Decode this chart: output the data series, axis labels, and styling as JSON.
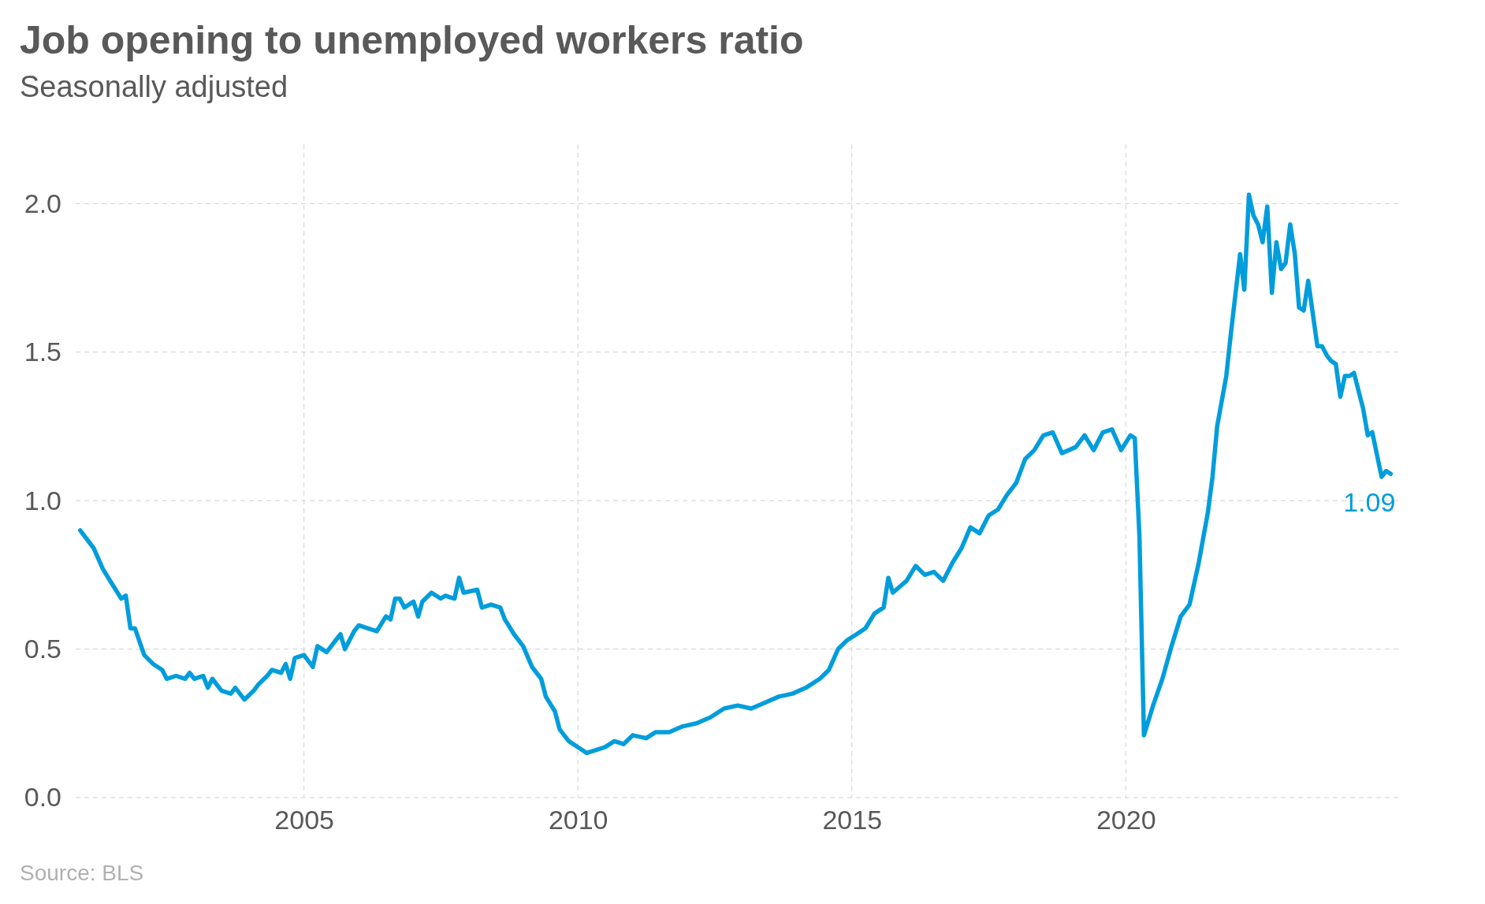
{
  "chart_data": {
    "type": "line",
    "title": "Job opening to unemployed workers ratio",
    "subtitle": "Seasonally adjusted",
    "annotations": [
      {
        "text": "1.09",
        "x": "2024-11",
        "y": 1.09
      },
      "Source: BLS"
    ],
    "xlim": [
      "2000-11",
      "2025-01"
    ],
    "xticks": [
      "2005",
      "2010",
      "2015",
      "2020"
    ],
    "ylim": [
      0,
      2.2
    ],
    "yticks": [
      {
        "value": 0,
        "label": "0.0"
      },
      {
        "value": 0.5,
        "label": "0.5"
      },
      {
        "value": 1,
        "label": "1.0"
      },
      {
        "value": 1.5,
        "label": "1.5"
      },
      {
        "value": 2,
        "label": "2.0"
      }
    ],
    "grid": true,
    "line_style": "solid",
    "series": [
      {
        "color": "#009ddc",
        "x": [
          "2000-12",
          "2001-03",
          "2001-05",
          "2001-07",
          "2001-09",
          "2001-10",
          "2001-11",
          "2001-12",
          "2002-02",
          "2002-04",
          "2002-06",
          "2002-07",
          "2002-09",
          "2002-11",
          "2002-12",
          "2003-01",
          "2003-03",
          "2003-04",
          "2003-05",
          "2003-07",
          "2003-09",
          "2003-10",
          "2003-12",
          "2004-02",
          "2004-03",
          "2004-05",
          "2004-06",
          "2004-08",
          "2004-09",
          "2004-10",
          "2004-11",
          "2005-01",
          "2005-03",
          "2005-04",
          "2005-06",
          "2005-08",
          "2005-09",
          "2005-10",
          "2005-12",
          "2006-01",
          "2006-03",
          "2006-05",
          "2006-07",
          "2006-08",
          "2006-09",
          "2006-10",
          "2006-11",
          "2007-01",
          "2007-02",
          "2007-03",
          "2007-05",
          "2007-07",
          "2007-08",
          "2007-10",
          "2007-11",
          "2007-12",
          "2008-03",
          "2008-04",
          "2008-06",
          "2008-08",
          "2008-09",
          "2008-11",
          "2009-01",
          "2009-03",
          "2009-05",
          "2009-06",
          "2009-08",
          "2009-09",
          "2009-11",
          "2010-01",
          "2010-03",
          "2010-05",
          "2010-07",
          "2010-09",
          "2010-11",
          "2011-01",
          "2011-04",
          "2011-06",
          "2011-09",
          "2011-12",
          "2012-03",
          "2012-06",
          "2012-09",
          "2012-12",
          "2013-03",
          "2013-06",
          "2013-09",
          "2013-12",
          "2014-03",
          "2014-06",
          "2014-08",
          "2014-10",
          "2014-12",
          "2015-02",
          "2015-04",
          "2015-06",
          "2015-08",
          "2015-09",
          "2015-10",
          "2016-01",
          "2016-03",
          "2016-05",
          "2016-07",
          "2016-09",
          "2016-11",
          "2017-01",
          "2017-03",
          "2017-05",
          "2017-07",
          "2017-09",
          "2017-11",
          "2018-01",
          "2018-03",
          "2018-05",
          "2018-07",
          "2018-09",
          "2018-11",
          "2019-02",
          "2019-04",
          "2019-06",
          "2019-08",
          "2019-10",
          "2019-12",
          "2020-02",
          "2020-03",
          "2020-04",
          "2020-05",
          "2020-07",
          "2020-09",
          "2020-11",
          "2021-01",
          "2021-03",
          "2021-05",
          "2021-07",
          "2021-08",
          "2021-09",
          "2021-11",
          "2021-12",
          "2022-02",
          "2022-03",
          "2022-04",
          "2022-05",
          "2022-06",
          "2022-07",
          "2022-08",
          "2022-09",
          "2022-10",
          "2022-11",
          "2022-12",
          "2023-01",
          "2023-02",
          "2023-03",
          "2023-04",
          "2023-05",
          "2023-07",
          "2023-08",
          "2023-09",
          "2023-10",
          "2023-11",
          "2023-12",
          "2024-01",
          "2024-02",
          "2024-03",
          "2024-05",
          "2024-06",
          "2024-07",
          "2024-09",
          "2024-10",
          "2024-11"
        ],
        "values": [
          0.9,
          0.84,
          0.77,
          0.72,
          0.67,
          0.68,
          0.57,
          0.57,
          0.48,
          0.45,
          0.43,
          0.4,
          0.41,
          0.4,
          0.42,
          0.4,
          0.41,
          0.37,
          0.4,
          0.36,
          0.35,
          0.37,
          0.33,
          0.36,
          0.38,
          0.41,
          0.43,
          0.42,
          0.45,
          0.4,
          0.47,
          0.48,
          0.44,
          0.51,
          0.49,
          0.53,
          0.55,
          0.5,
          0.56,
          0.58,
          0.57,
          0.56,
          0.61,
          0.6,
          0.67,
          0.67,
          0.64,
          0.66,
          0.61,
          0.66,
          0.69,
          0.67,
          0.68,
          0.67,
          0.74,
          0.69,
          0.7,
          0.64,
          0.65,
          0.64,
          0.6,
          0.55,
          0.51,
          0.44,
          0.4,
          0.34,
          0.29,
          0.23,
          0.19,
          0.17,
          0.15,
          0.16,
          0.17,
          0.19,
          0.18,
          0.21,
          0.2,
          0.22,
          0.22,
          0.24,
          0.25,
          0.27,
          0.3,
          0.31,
          0.3,
          0.32,
          0.34,
          0.35,
          0.37,
          0.4,
          0.43,
          0.5,
          0.53,
          0.55,
          0.57,
          0.62,
          0.64,
          0.74,
          0.69,
          0.73,
          0.78,
          0.75,
          0.76,
          0.73,
          0.79,
          0.84,
          0.91,
          0.89,
          0.95,
          0.97,
          1.02,
          1.06,
          1.14,
          1.17,
          1.22,
          1.23,
          1.16,
          1.18,
          1.22,
          1.17,
          1.23,
          1.24,
          1.17,
          1.22,
          1.21,
          0.88,
          0.21,
          0.31,
          0.4,
          0.51,
          0.61,
          0.65,
          0.79,
          0.96,
          1.08,
          1.25,
          1.42,
          1.56,
          1.83,
          1.71,
          2.03,
          1.96,
          1.93,
          1.87,
          1.99,
          1.7,
          1.87,
          1.78,
          1.8,
          1.93,
          1.83,
          1.65,
          1.64,
          1.74,
          1.52,
          1.52,
          1.49,
          1.47,
          1.46,
          1.35,
          1.42,
          1.42,
          1.43,
          1.31,
          1.22,
          1.23,
          1.08,
          1.1,
          1.09
        ]
      }
    ]
  }
}
